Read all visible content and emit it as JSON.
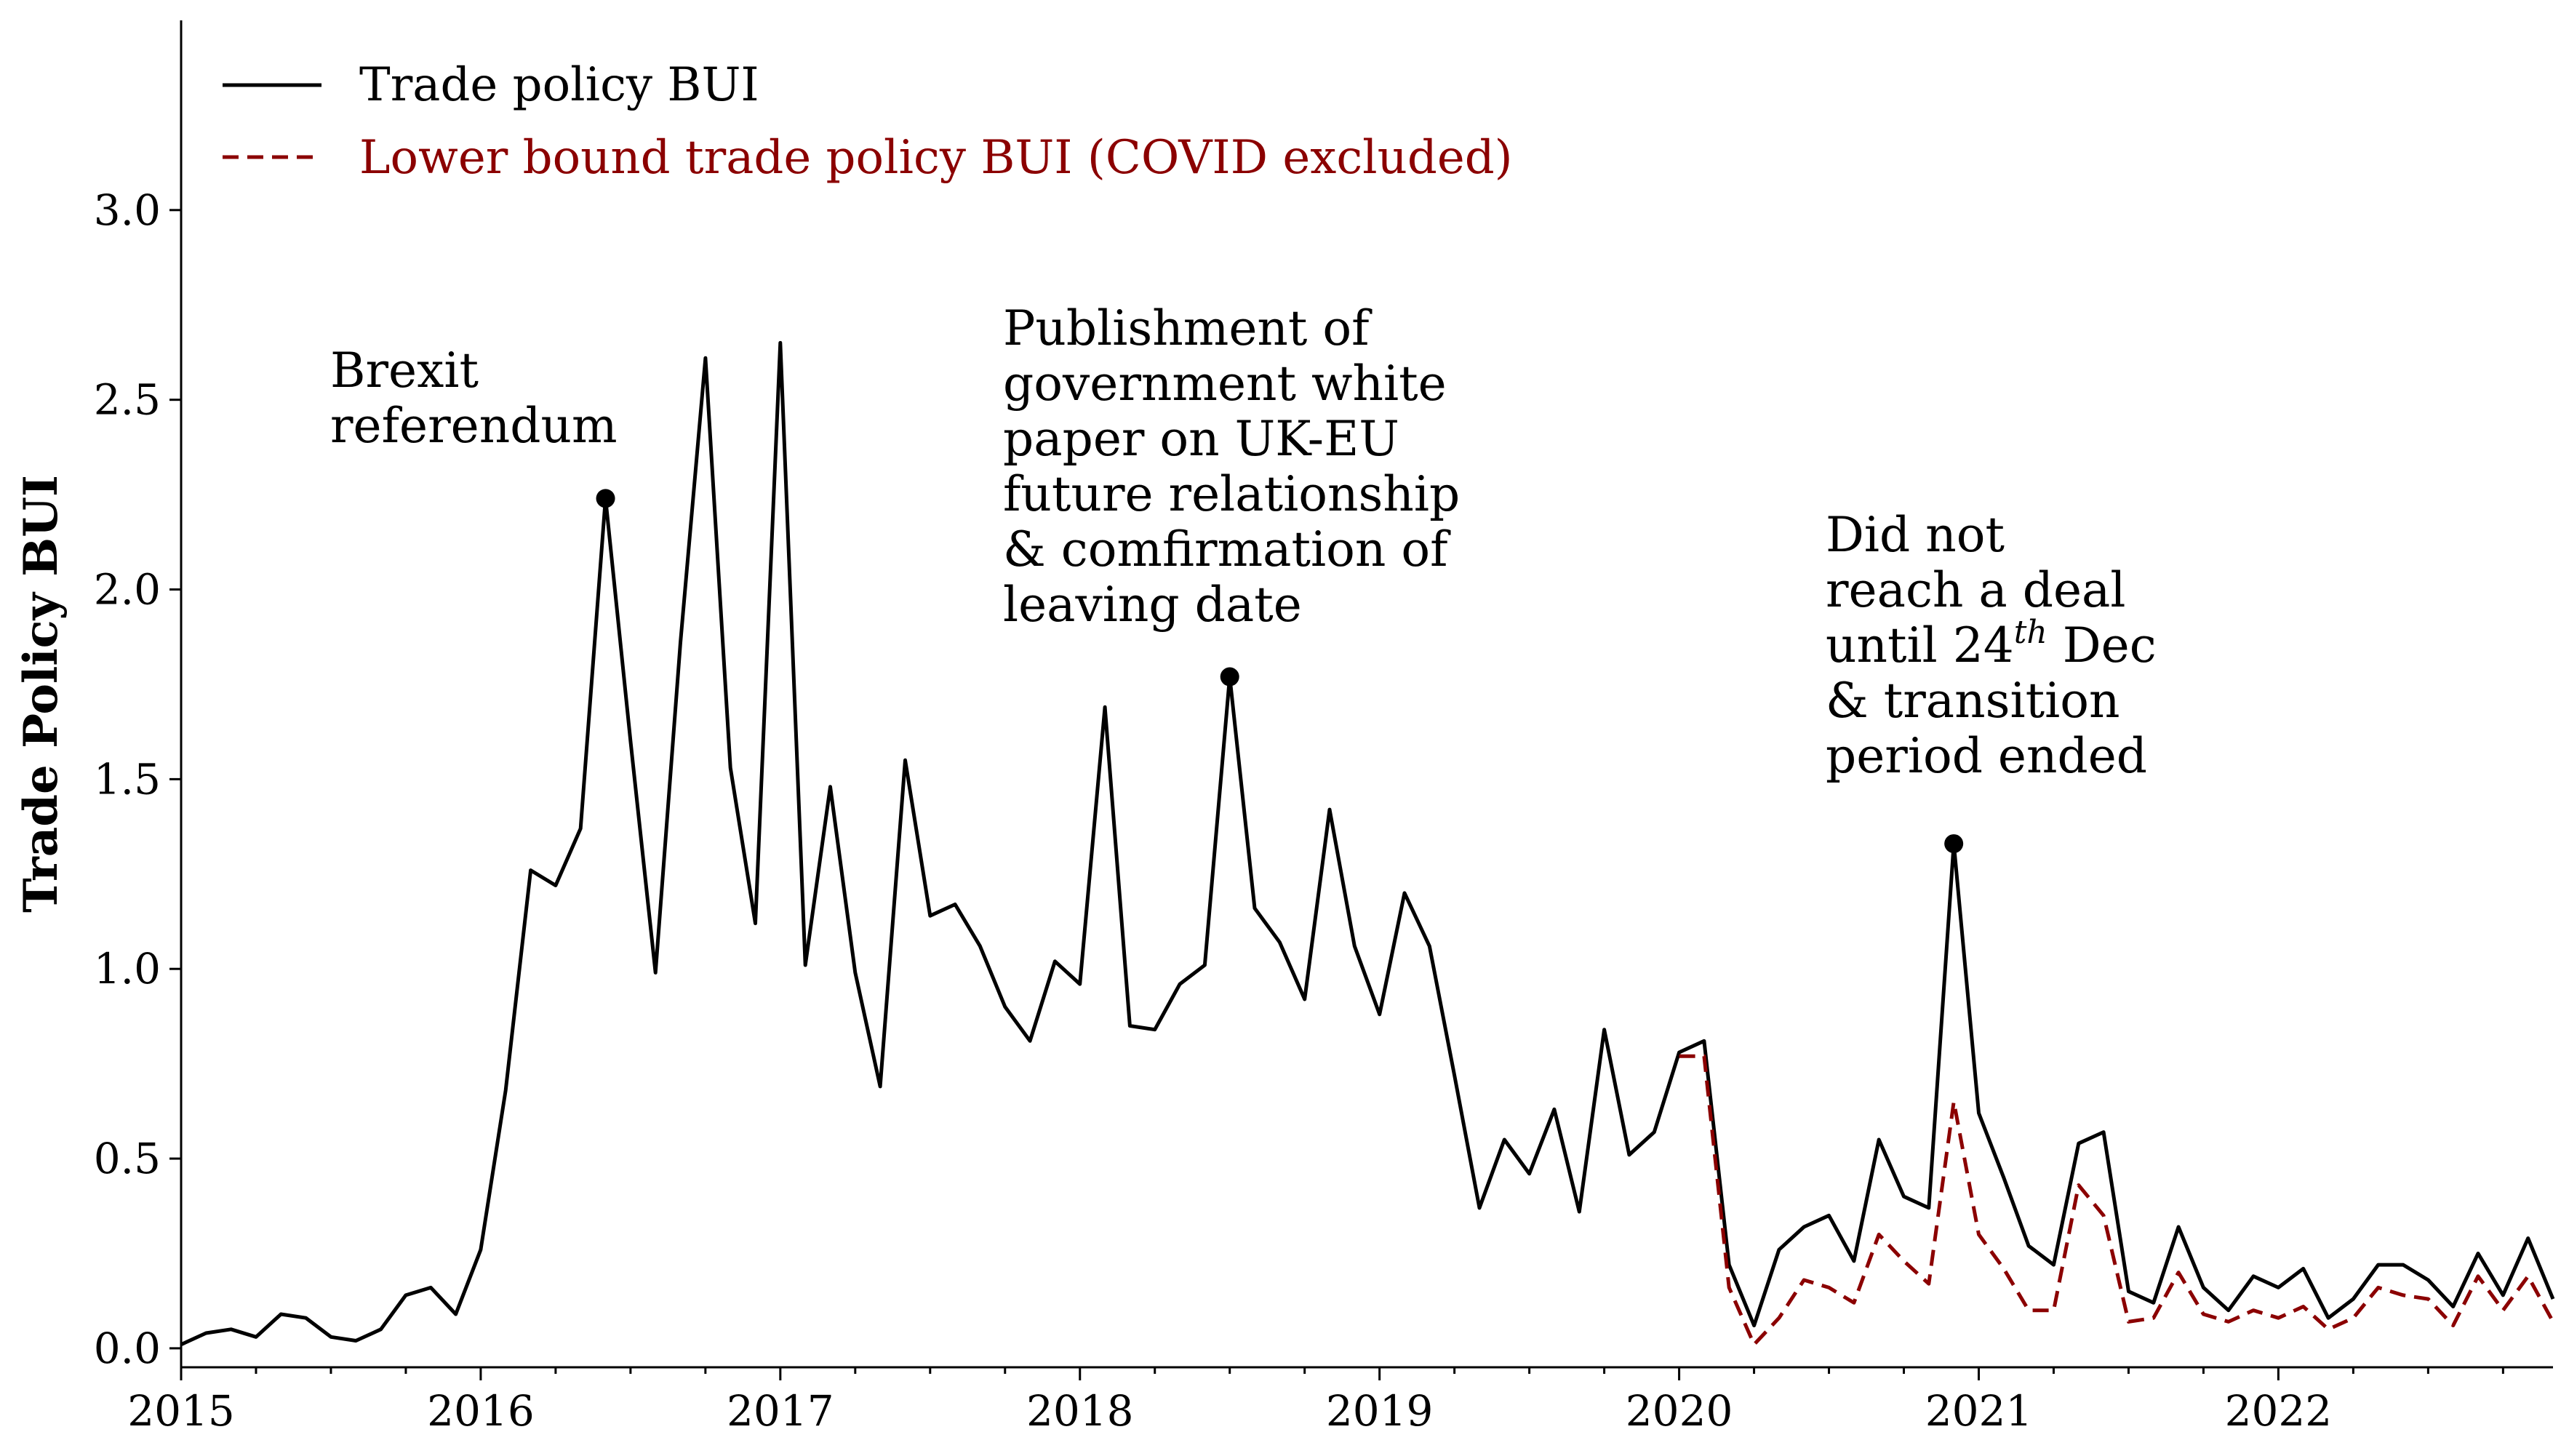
{
  "chart_data": {
    "type": "line",
    "title": "",
    "xlabel": "",
    "ylabel": "Trade Policy BUI",
    "xlim": [
      "2015-01",
      "2022-12"
    ],
    "ylim": [
      -0.05,
      3.5
    ],
    "yticks": [
      0.0,
      0.5,
      1.0,
      1.5,
      2.0,
      2.5,
      3.0
    ],
    "ytick_labels": [
      "0.0",
      "0.5",
      "1.0",
      "1.5",
      "2.0",
      "2.5",
      "3.0"
    ],
    "xticks": [
      "2015",
      "2016",
      "2017",
      "2018",
      "2019",
      "2020",
      "2021",
      "2022"
    ],
    "grid": false,
    "legend_position": "top-left",
    "series": [
      {
        "name": "Trade policy BUI",
        "color": "#000000",
        "style": "solid",
        "start": "2015-01",
        "values": [
          0.01,
          0.04,
          0.05,
          0.03,
          0.09,
          0.08,
          0.03,
          0.02,
          0.05,
          0.14,
          0.16,
          0.09,
          0.26,
          0.68,
          1.26,
          1.22,
          1.37,
          2.24,
          1.6,
          0.99,
          1.86,
          2.61,
          1.53,
          1.12,
          2.65,
          1.01,
          1.48,
          0.99,
          0.69,
          1.55,
          1.14,
          1.17,
          1.06,
          0.9,
          0.81,
          1.02,
          0.96,
          1.69,
          0.85,
          0.84,
          0.96,
          1.01,
          1.77,
          1.16,
          1.07,
          0.92,
          1.42,
          1.06,
          0.88,
          1.2,
          1.06,
          0.72,
          0.37,
          0.55,
          0.46,
          0.63,
          0.36,
          0.84,
          0.51,
          0.57,
          0.78,
          0.81,
          0.22,
          0.06,
          0.26,
          0.32,
          0.35,
          0.23,
          0.55,
          0.4,
          0.37,
          1.33,
          0.62,
          0.45,
          0.27,
          0.22,
          0.54,
          0.57,
          0.15,
          0.12,
          0.32,
          0.16,
          0.1,
          0.19,
          0.16,
          0.21,
          0.08,
          0.13,
          0.22,
          0.22,
          0.18,
          0.11,
          0.25,
          0.14,
          0.29,
          0.13
        ]
      },
      {
        "name": "Lower bound trade policy BUI (COVID excluded)",
        "color": "#8b0000",
        "style": "dashed",
        "start": "2020-01",
        "values": [
          0.77,
          0.77,
          0.16,
          0.01,
          0.08,
          0.18,
          0.16,
          0.12,
          0.3,
          0.23,
          0.17,
          0.65,
          0.3,
          0.21,
          0.1,
          0.1,
          0.43,
          0.35,
          0.07,
          0.08,
          0.2,
          0.09,
          0.07,
          0.1,
          0.08,
          0.11,
          0.05,
          0.08,
          0.16,
          0.14,
          0.13,
          0.06,
          0.19,
          0.1,
          0.19,
          0.07
        ]
      }
    ],
    "markers": [
      {
        "date": "2016-06",
        "value": 2.24
      },
      {
        "date": "2018-07",
        "value": 1.77
      },
      {
        "date": "2020-12",
        "value": 1.33
      }
    ],
    "annotations": [
      {
        "lines": [
          "Brexit",
          "referendum"
        ]
      },
      {
        "lines": [
          "Publishment of",
          "government white",
          "paper on UK-EU",
          "future relationship",
          "& comfirmation of",
          "leaving date"
        ]
      },
      {
        "lines": [
          "Did not",
          "reach a deal",
          "until 24",
          "th",
          " Dec",
          "& transition",
          "period ended"
        ]
      }
    ]
  }
}
